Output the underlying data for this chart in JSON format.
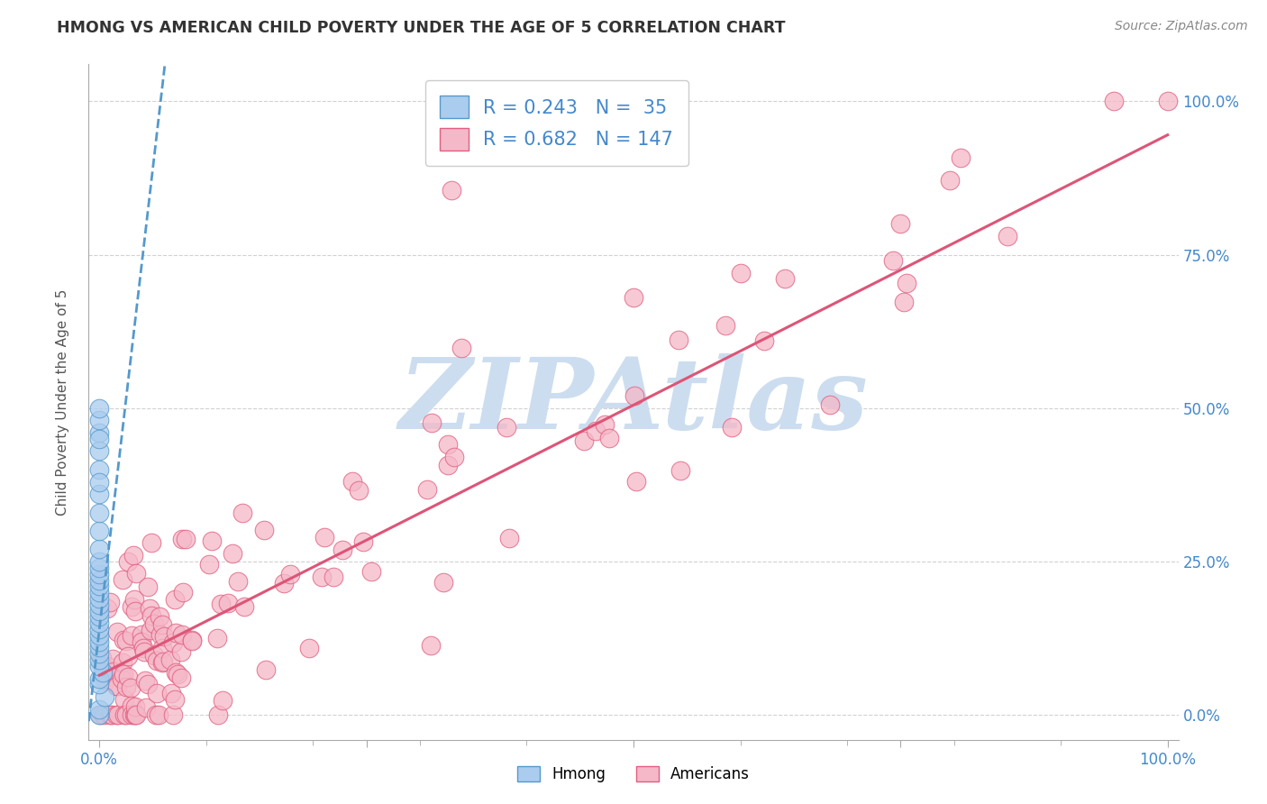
{
  "title": "HMONG VS AMERICAN CHILD POVERTY UNDER THE AGE OF 5 CORRELATION CHART",
  "source": "Source: ZipAtlas.com",
  "ylabel": "Child Poverty Under the Age of 5",
  "legend_hmong_R": "0.243",
  "legend_hmong_N": "35",
  "legend_american_R": "0.682",
  "legend_american_N": "147",
  "hmong_color": "#aaccee",
  "hmong_edge_color": "#5599cc",
  "american_color": "#f5b8c8",
  "american_edge_color": "#e06080",
  "regression_hmong_color": "#5599cc",
  "regression_american_color": "#dd5577",
  "background_color": "#ffffff",
  "watermark_color": "#ccddef",
  "grid_color": "#cccccc",
  "title_color": "#333333",
  "axis_label_color": "#555555",
  "tick_label_color": "#4488cc",
  "hmong_regression_slope": 15.0,
  "hmong_regression_intercept": 0.14,
  "american_regression_slope": 0.88,
  "american_regression_intercept": 0.065
}
